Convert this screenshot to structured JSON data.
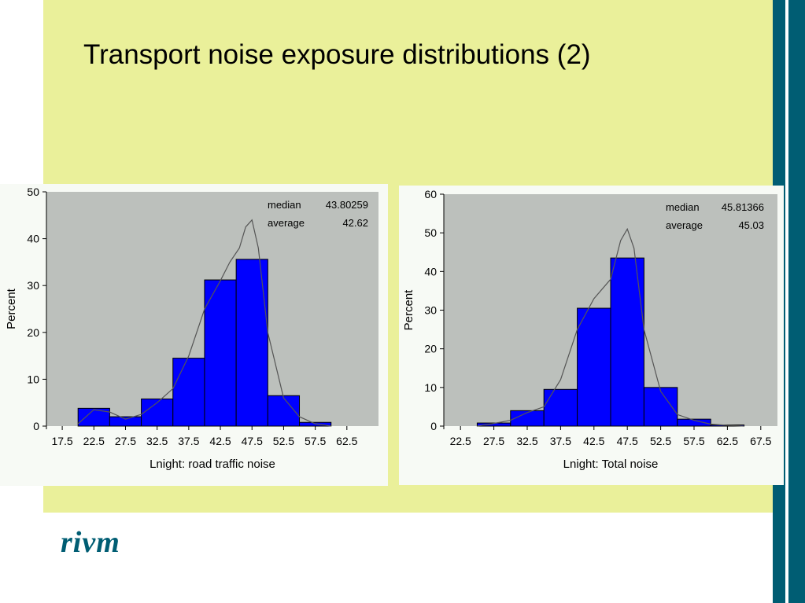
{
  "slide": {
    "title": "Transport noise exposure distributions (2)",
    "logo_text": "rivm"
  },
  "colors": {
    "band": "#eaf09a",
    "accent": "#005d73",
    "plot_bg": "#bcc0bc",
    "bar": "#0000ff",
    "bar_edge": "#000000",
    "curve": "#555555"
  },
  "chart_data": [
    {
      "type": "bar",
      "xlabel": "Lnight: road traffic noise",
      "ylabel": "Percent",
      "ylim": [
        0,
        50
      ],
      "yticks": [
        0,
        10,
        20,
        30,
        40,
        50
      ],
      "ytick_labels": [
        "0",
        "10",
        "20",
        "30",
        "40",
        "50"
      ],
      "xlim": [
        15,
        67.5
      ],
      "xticks": [
        17.5,
        22.5,
        27.5,
        32.5,
        37.5,
        42.5,
        47.5,
        52.5,
        57.5,
        62.5
      ],
      "xtick_labels": [
        "17.5",
        "22.5",
        "27.5",
        "32.5",
        "37.5",
        "42.5",
        "47.5",
        "52.5",
        "57.5",
        "62.5"
      ],
      "categories": [
        22.5,
        27.5,
        32.5,
        37.5,
        42.5,
        47.5,
        52.5,
        57.5
      ],
      "values": [
        3.8,
        2.0,
        5.8,
        14.5,
        31.2,
        35.6,
        6.5,
        0.8
      ],
      "bin_width": 5,
      "density_curve": {
        "x": [
          20,
          22.5,
          25,
          27.5,
          30,
          32.5,
          35,
          37.5,
          40,
          42.5,
          44,
          45.5,
          46.5,
          47.5,
          48.5,
          50,
          52.5,
          55,
          57.5,
          60
        ],
        "y": [
          0.5,
          3.5,
          3.0,
          1.5,
          2.5,
          5.0,
          8.0,
          15.0,
          25.0,
          31.0,
          35.0,
          38.0,
          42.5,
          44.0,
          38.0,
          20.0,
          6.0,
          2.0,
          0.5,
          0.0
        ]
      },
      "stats": [
        {
          "label": "median",
          "value": "43.80259"
        },
        {
          "label": "average",
          "value": "42.62"
        }
      ]
    },
    {
      "type": "bar",
      "xlabel": "Lnight: Total noise",
      "ylabel": "Percent",
      "ylim": [
        0,
        60
      ],
      "yticks": [
        0,
        10,
        20,
        30,
        40,
        50,
        60
      ],
      "ytick_labels": [
        "0",
        "10",
        "20",
        "30",
        "40",
        "50",
        "60"
      ],
      "xlim": [
        20,
        70
      ],
      "xticks": [
        22.5,
        27.5,
        32.5,
        37.5,
        42.5,
        47.5,
        52.5,
        57.5,
        62.5,
        67.5
      ],
      "xtick_labels": [
        "22.5",
        "27.5",
        "32.5",
        "37.5",
        "42.5",
        "47.5",
        "52.5",
        "57.5",
        "62.5",
        "67.5"
      ],
      "categories": [
        27.5,
        32.5,
        37.5,
        42.5,
        47.5,
        52.5,
        57.5,
        62.5
      ],
      "values": [
        0.8,
        4.0,
        9.5,
        30.5,
        43.5,
        10.0,
        1.8,
        0.3
      ],
      "bin_width": 5,
      "density_curve": {
        "x": [
          25,
          27.5,
          30,
          32.5,
          35,
          37.5,
          40,
          42.5,
          45,
          46.5,
          47.5,
          48.5,
          50,
          52.5,
          55,
          57.5,
          60,
          62.5,
          65
        ],
        "y": [
          0.0,
          0.7,
          1.5,
          3.5,
          5.0,
          12.0,
          25.0,
          33.0,
          38.0,
          48.0,
          51.0,
          46.0,
          25.0,
          9.0,
          3.0,
          1.5,
          0.5,
          0.2,
          0.0
        ]
      },
      "stats": [
        {
          "label": "median",
          "value": "45.81366"
        },
        {
          "label": "average",
          "value": "45.03"
        }
      ]
    }
  ]
}
